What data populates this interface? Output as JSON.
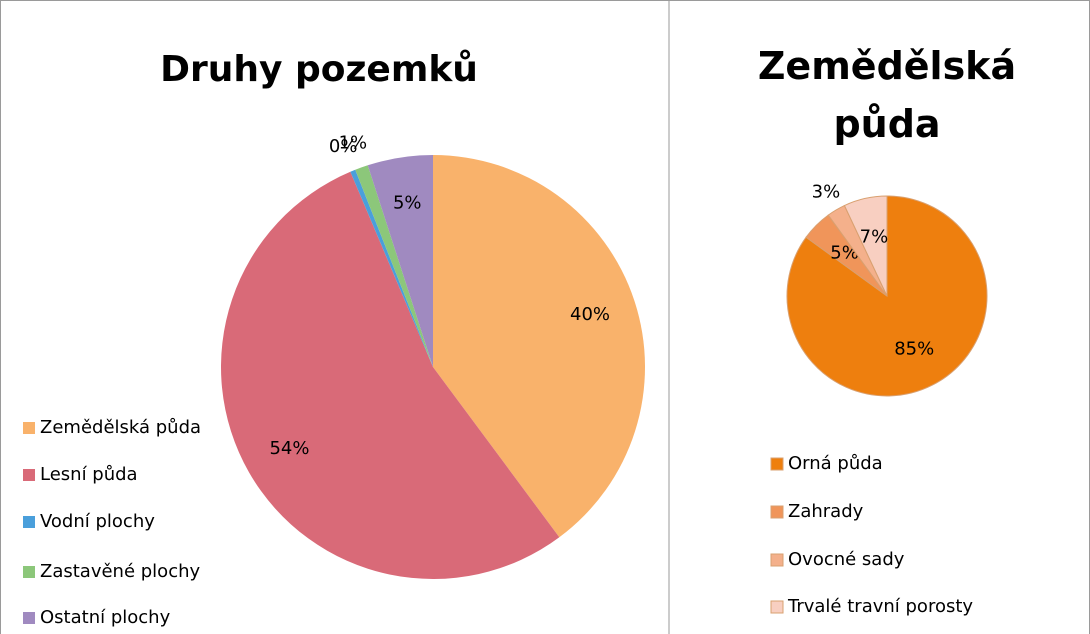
{
  "chart_data": [
    {
      "type": "pie",
      "title": "Druhy pozemků",
      "categories": [
        "Zemědělská půda",
        "Lesní půda",
        "Vodní plochy",
        "Zastavěné plochy",
        "Ostatní plochy"
      ],
      "values": [
        40,
        54,
        0.4,
        1,
        5
      ],
      "value_labels": [
        "40%",
        "54%",
        "0%",
        "1%",
        "5%"
      ],
      "colors": [
        "#f9b26b",
        "#d96a78",
        "#4a9fdb",
        "#8cc77a",
        "#a08ac0"
      ]
    },
    {
      "type": "pie",
      "title": "Zemědělská půda",
      "categories": [
        "Orná půda",
        "Zahrady",
        "Ovocné sady",
        "Trvalé travní porosty"
      ],
      "values": [
        85,
        5,
        3,
        7
      ],
      "value_labels": [
        "85%",
        "5%",
        "3%",
        "7%"
      ],
      "colors": [
        "#ee7f0e",
        "#f0955a",
        "#f4b08b",
        "#f8cfc1"
      ]
    }
  ]
}
